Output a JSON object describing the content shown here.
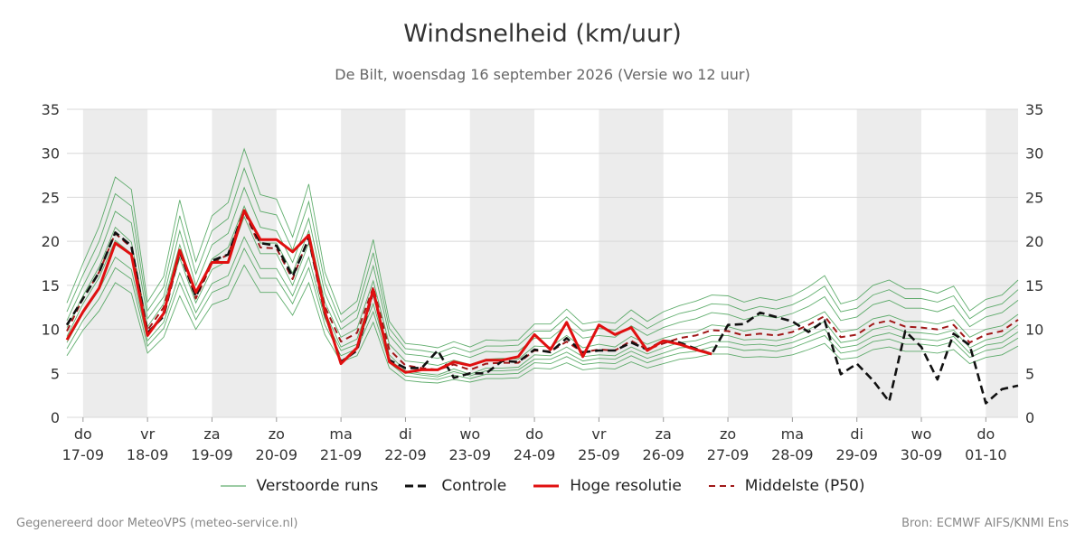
{
  "header": {
    "title": "Windsnelheid (km/uur)",
    "subtitle": "De Bilt, woensdag 16 september 2026 (Versie wo 12 uur)"
  },
  "footer": {
    "generated": "Gegenereerd door MeteoVPS (meteo-service.nl)",
    "source": "Bron: ECMWF AIFS/KNMI Ens"
  },
  "legend": [
    {
      "label": "Verstoorde runs",
      "color": "#3a9a4a",
      "style": "thin"
    },
    {
      "label": "Controle",
      "color": "#111111",
      "style": "dashed"
    },
    {
      "label": "Hoge resolutie",
      "color": "#e01010",
      "style": "solid"
    },
    {
      "label": "Middelste (P50)",
      "color": "#a01818",
      "style": "dashed"
    }
  ],
  "colors": {
    "ensemble": "#3a9a4a",
    "control": "#111111",
    "highres": "#e01010",
    "median": "#a01818",
    "weekend_band": "#ececec",
    "grid": "#d8d8d8"
  },
  "chart_data": {
    "type": "line",
    "title": "Windsnelheid (km/uur)",
    "ylim": [
      0,
      35
    ],
    "yticks": [
      0,
      5,
      10,
      15,
      20,
      25,
      30,
      35
    ],
    "xlim": [
      -0.25,
      14.5
    ],
    "grid": true,
    "legend_position": "bottom",
    "x_ticks": [
      {
        "x": 0,
        "day": "do",
        "date": "17-09"
      },
      {
        "x": 1,
        "day": "vr",
        "date": "18-09"
      },
      {
        "x": 2,
        "day": "za",
        "date": "19-09"
      },
      {
        "x": 3,
        "day": "zo",
        "date": "20-09"
      },
      {
        "x": 4,
        "day": "ma",
        "date": "21-09"
      },
      {
        "x": 5,
        "day": "di",
        "date": "22-09"
      },
      {
        "x": 6,
        "day": "wo",
        "date": "23-09"
      },
      {
        "x": 7,
        "day": "do",
        "date": "24-09"
      },
      {
        "x": 8,
        "day": "vr",
        "date": "25-09"
      },
      {
        "x": 9,
        "day": "za",
        "date": "26-09"
      },
      {
        "x": 10,
        "day": "zo",
        "date": "27-09"
      },
      {
        "x": 11,
        "day": "ma",
        "date": "28-09"
      },
      {
        "x": 12,
        "day": "di",
        "date": "29-09"
      },
      {
        "x": 13,
        "day": "wo",
        "date": "30-09"
      },
      {
        "x": 14,
        "day": "do",
        "date": "01-10"
      }
    ],
    "shaded_bands": [
      [
        0,
        1
      ],
      [
        2,
        3
      ],
      [
        4,
        5
      ],
      [
        6,
        7
      ],
      [
        8,
        9
      ],
      [
        10,
        11
      ],
      [
        12,
        13
      ],
      [
        14,
        14.5
      ]
    ],
    "series": [
      {
        "name": "Hoge resolutie",
        "x": [
          -0.25,
          0.0,
          0.25,
          0.5,
          0.75,
          1.0,
          1.25,
          1.5,
          1.75,
          2.0,
          2.25,
          2.5,
          2.75,
          3.0,
          3.25,
          3.5,
          3.75,
          4.0,
          4.25,
          4.5,
          4.75,
          5.0,
          5.25,
          5.5,
          5.75,
          6.0,
          6.25,
          6.5,
          6.75,
          7.0,
          7.25,
          7.5,
          7.75,
          8.0,
          8.25,
          8.5,
          8.75,
          9.0,
          9.25,
          9.5,
          9.75
        ],
        "values": [
          8.8,
          12.0,
          14.7,
          19.8,
          18.5,
          9.3,
          11.8,
          19.0,
          14.2,
          17.6,
          17.6,
          23.5,
          20.2,
          20.2,
          18.8,
          20.7,
          12.0,
          6.1,
          7.9,
          14.5,
          6.3,
          5.1,
          5.4,
          5.4,
          6.3,
          5.9,
          6.5,
          6.5,
          6.9,
          9.4,
          7.7,
          10.8,
          6.9,
          10.5,
          9.4,
          10.2,
          7.6,
          8.7,
          8.3,
          7.7,
          7.2
        ]
      },
      {
        "name": "Controle",
        "x": [
          -0.25,
          0.0,
          0.25,
          0.5,
          0.75,
          1.0,
          1.25,
          1.5,
          1.75,
          2.0,
          2.25,
          2.5,
          2.75,
          3.0,
          3.25,
          3.5,
          3.75,
          4.0,
          4.25,
          4.5,
          4.75,
          5.0,
          5.25,
          5.5,
          5.75,
          6.0,
          6.25,
          6.5,
          6.75,
          7.0,
          7.25,
          7.5,
          7.75,
          8.0,
          8.25,
          8.5,
          8.75,
          9.0,
          9.25,
          9.5,
          9.75,
          10.0,
          10.25,
          10.5,
          10.75,
          11.0,
          11.25,
          11.5,
          11.75,
          12.0,
          12.25,
          12.5,
          12.75,
          13.0,
          13.25,
          13.5,
          13.75,
          14.0,
          14.25,
          14.5
        ],
        "values": [
          10.5,
          13.5,
          16.5,
          21.0,
          19.5,
          9.6,
          11.5,
          18.8,
          13.7,
          17.8,
          18.5,
          23.5,
          19.8,
          19.5,
          16.0,
          20.3,
          11.8,
          6.3,
          7.6,
          14.3,
          6.5,
          5.6,
          5.6,
          7.6,
          4.5,
          5.0,
          5.0,
          6.4,
          6.3,
          7.7,
          7.4,
          9.0,
          7.4,
          7.6,
          7.6,
          8.5,
          7.7,
          8.7,
          8.5,
          7.8,
          7.2,
          10.5,
          10.6,
          11.9,
          11.4,
          10.9,
          9.7,
          11.0,
          4.9,
          6.1,
          4.2,
          1.8,
          9.8,
          8.0,
          4.3,
          9.5,
          8.2,
          1.6,
          3.2,
          3.6
        ]
      },
      {
        "name": "Middelste (P50)",
        "x": [
          -0.25,
          0.0,
          0.25,
          0.5,
          0.75,
          1.0,
          1.25,
          1.5,
          1.75,
          2.0,
          2.25,
          2.5,
          2.75,
          3.0,
          3.25,
          3.5,
          3.75,
          4.0,
          4.25,
          4.5,
          4.75,
          5.0,
          5.25,
          5.5,
          5.75,
          6.0,
          6.25,
          6.5,
          6.75,
          7.0,
          7.25,
          7.5,
          7.75,
          8.0,
          8.25,
          8.5,
          8.75,
          9.0,
          9.25,
          9.5,
          9.75,
          10.0,
          10.25,
          10.5,
          10.75,
          11.0,
          11.25,
          11.5,
          11.75,
          12.0,
          12.25,
          12.5,
          12.75,
          13.0,
          13.25,
          13.5,
          13.75,
          14.0,
          14.25,
          14.5
        ],
        "values": [
          9.8,
          13.5,
          16.5,
          20.9,
          19.3,
          9.9,
          12.5,
          18.8,
          13.5,
          17.5,
          18.5,
          23.4,
          19.3,
          19.2,
          15.7,
          20.5,
          12.6,
          8.6,
          9.6,
          14.8,
          7.7,
          5.9,
          5.6,
          5.4,
          6.0,
          5.4,
          6.1,
          6.2,
          6.2,
          7.6,
          7.5,
          8.6,
          7.4,
          7.7,
          7.6,
          8.7,
          7.7,
          8.4,
          9.0,
          9.3,
          9.9,
          9.8,
          9.3,
          9.5,
          9.3,
          9.7,
          10.5,
          11.5,
          9.1,
          9.4,
          10.6,
          11.0,
          10.3,
          10.2,
          10.0,
          10.5,
          8.5,
          9.4,
          9.8,
          11.1
        ]
      }
    ],
    "ensemble_members": {
      "name": "Verstoorde runs",
      "x": [
        -0.25,
        0.0,
        0.25,
        0.5,
        0.75,
        1.0,
        1.25,
        1.5,
        1.75,
        2.0,
        2.25,
        2.5,
        2.75,
        3.0,
        3.25,
        3.5,
        3.75,
        4.0,
        4.25,
        4.5,
        4.75,
        5.0,
        5.25,
        5.5,
        5.75,
        6.0,
        6.25,
        6.5,
        6.75,
        7.0,
        7.25,
        7.5,
        7.75,
        8.0,
        8.25,
        8.5,
        8.75,
        9.0,
        9.25,
        9.5,
        9.75,
        10.0,
        10.25,
        10.5,
        10.75,
        11.0,
        11.25,
        11.5,
        11.75,
        12.0,
        12.25,
        12.5,
        12.75,
        13.0,
        13.25,
        13.5,
        13.75,
        14.0,
        14.25,
        14.5
      ],
      "members": [
        [
          10.2,
          13.8,
          17.1,
          21.6,
          19.9,
          10.3,
          12.9,
          19.6,
          14.1,
          18.0,
          19.3,
          24.0,
          19.8,
          19.8,
          16.4,
          21.2,
          13.1,
          9.1,
          10.1,
          15.5,
          8.3,
          6.4,
          6.2,
          5.9,
          6.5,
          6.0,
          6.6,
          6.7,
          6.6,
          8.1,
          8.0,
          9.3,
          7.9,
          8.3,
          8.0,
          9.2,
          8.3,
          9.0,
          9.5,
          9.7,
          10.5,
          10.3,
          9.8,
          10.1,
          9.9,
          10.4,
          11.1,
          12.0,
          9.7,
          10.0,
          11.2,
          11.6,
          10.9,
          10.9,
          10.6,
          11.1,
          9.1,
          10.0,
          10.4,
          11.7
        ],
        [
          9.2,
          12.9,
          15.9,
          20.1,
          18.6,
          9.3,
          11.9,
          18.1,
          13.0,
          16.8,
          17.8,
          22.8,
          18.6,
          18.6,
          15.0,
          19.8,
          12.0,
          8.0,
          8.9,
          14.2,
          7.1,
          5.3,
          5.0,
          4.8,
          5.5,
          4.9,
          5.6,
          5.6,
          5.7,
          7.1,
          7.0,
          8.0,
          6.9,
          7.1,
          7.0,
          8.0,
          7.2,
          7.9,
          8.5,
          8.7,
          9.3,
          9.3,
          8.8,
          8.9,
          8.7,
          9.1,
          10.0,
          10.9,
          8.5,
          8.8,
          10.0,
          10.4,
          9.7,
          9.6,
          9.4,
          9.9,
          7.9,
          8.8,
          9.2,
          10.5
        ],
        [
          11.0,
          14.9,
          18.5,
          23.4,
          22.1,
          11.2,
          13.7,
          21.2,
          15.0,
          19.6,
          20.9,
          26.1,
          21.6,
          21.2,
          17.6,
          22.6,
          14.1,
          10.0,
          11.3,
          17.2,
          9.3,
          7.2,
          7.0,
          6.7,
          7.3,
          6.8,
          7.5,
          7.4,
          7.5,
          9.0,
          9.0,
          10.5,
          9.0,
          9.3,
          9.1,
          10.4,
          9.3,
          10.2,
          10.8,
          11.2,
          11.9,
          11.7,
          11.1,
          11.6,
          11.3,
          11.8,
          12.6,
          13.7,
          11.0,
          11.4,
          12.8,
          13.3,
          12.4,
          12.4,
          12.0,
          12.7,
          10.3,
          11.4,
          11.9,
          13.3
        ],
        [
          8.5,
          11.8,
          14.5,
          18.2,
          16.8,
          8.7,
          10.8,
          16.4,
          11.9,
          15.2,
          16.1,
          20.5,
          16.9,
          16.9,
          13.8,
          18.2,
          11.2,
          7.6,
          8.3,
          12.9,
          6.6,
          5.1,
          4.8,
          4.6,
          5.2,
          4.7,
          5.3,
          5.3,
          5.4,
          6.6,
          6.6,
          7.4,
          6.4,
          6.7,
          6.6,
          7.5,
          6.7,
          7.3,
          7.9,
          8.0,
          8.6,
          8.6,
          8.2,
          8.3,
          8.1,
          8.5,
          9.2,
          10.0,
          7.9,
          8.2,
          9.2,
          9.6,
          9.0,
          8.9,
          8.7,
          9.2,
          7.3,
          8.2,
          8.5,
          9.7
        ],
        [
          12.0,
          16.2,
          20.0,
          25.4,
          24.0,
          12.1,
          14.8,
          22.9,
          16.3,
          21.2,
          22.6,
          28.3,
          23.4,
          23.0,
          19.0,
          24.5,
          15.3,
          10.8,
          12.2,
          18.7,
          10.1,
          7.8,
          7.6,
          7.3,
          8.0,
          7.4,
          8.1,
          8.1,
          8.2,
          9.8,
          9.8,
          11.4,
          9.8,
          10.1,
          9.9,
          11.3,
          10.1,
          11.1,
          11.8,
          12.2,
          12.9,
          12.8,
          12.1,
          12.6,
          12.3,
          12.8,
          13.7,
          14.9,
          12.0,
          12.4,
          13.9,
          14.5,
          13.5,
          13.5,
          13.1,
          13.8,
          11.2,
          12.4,
          12.9,
          14.5
        ],
        [
          7.8,
          11.0,
          13.5,
          17.0,
          15.7,
          8.1,
          10.1,
          15.3,
          11.1,
          14.2,
          15.0,
          19.2,
          15.8,
          15.8,
          12.9,
          17.0,
          10.5,
          7.0,
          7.8,
          12.0,
          6.2,
          4.7,
          4.5,
          4.3,
          4.8,
          4.4,
          4.9,
          4.9,
          5.0,
          6.2,
          6.1,
          6.9,
          6.0,
          6.2,
          6.1,
          7.0,
          6.2,
          6.8,
          7.3,
          7.5,
          8.0,
          8.0,
          7.6,
          7.7,
          7.5,
          7.9,
          8.6,
          9.3,
          7.3,
          7.6,
          8.6,
          8.9,
          8.3,
          8.3,
          8.1,
          8.6,
          6.8,
          7.6,
          7.9,
          9.0
        ],
        [
          13.0,
          17.5,
          21.7,
          27.3,
          25.9,
          13.1,
          16.0,
          24.7,
          17.7,
          22.9,
          24.4,
          30.5,
          25.3,
          24.8,
          20.5,
          26.5,
          16.5,
          11.7,
          13.2,
          20.2,
          10.9,
          8.4,
          8.2,
          7.9,
          8.6,
          8.0,
          8.8,
          8.7,
          8.8,
          10.6,
          10.6,
          12.3,
          10.6,
          10.9,
          10.7,
          12.2,
          10.9,
          12.0,
          12.7,
          13.2,
          13.9,
          13.8,
          13.1,
          13.6,
          13.3,
          13.8,
          14.8,
          16.1,
          12.9,
          13.4,
          15.0,
          15.6,
          14.6,
          14.6,
          14.1,
          14.9,
          12.1,
          13.4,
          13.9,
          15.6
        ],
        [
          7.0,
          9.9,
          12.1,
          15.3,
          14.1,
          7.3,
          9.1,
          13.8,
          10.0,
          12.8,
          13.5,
          17.3,
          14.2,
          14.2,
          11.6,
          15.3,
          9.4,
          6.3,
          7.0,
          10.8,
          5.6,
          4.2,
          4.0,
          3.9,
          4.3,
          4.0,
          4.4,
          4.4,
          4.5,
          5.6,
          5.5,
          6.2,
          5.4,
          5.6,
          5.5,
          6.3,
          5.6,
          6.1,
          6.6,
          6.8,
          7.2,
          7.2,
          6.8,
          6.9,
          6.8,
          7.1,
          7.7,
          8.4,
          6.6,
          6.8,
          7.7,
          8.0,
          7.5,
          7.5,
          7.3,
          7.7,
          6.1,
          6.8,
          7.1,
          8.1
        ]
      ]
    }
  }
}
